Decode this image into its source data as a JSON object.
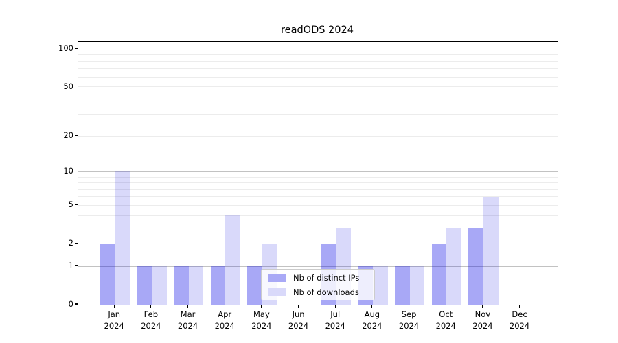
{
  "title": "readODS 2024",
  "chart_data": {
    "type": "bar",
    "title": "readODS 2024",
    "y_scale": "log1p",
    "grid": true,
    "legend_position": "lower center",
    "categories": [
      "Jan",
      "Feb",
      "Mar",
      "Apr",
      "May",
      "Jun",
      "Jul",
      "Aug",
      "Sep",
      "Oct",
      "Nov",
      "Dec"
    ],
    "x_tick_second_line": "2024",
    "series": [
      {
        "name": "Nb of distinct IPs",
        "color": "#a9a9f6",
        "fill": "rgba(0,0,230,0.34)",
        "values": [
          2,
          1,
          1,
          1,
          1,
          0,
          2,
          1,
          1,
          2,
          3,
          0
        ]
      },
      {
        "name": "Nb of downloads",
        "color": "#d9d9fa",
        "fill": "rgba(0,0,222,0.15)",
        "values": [
          10,
          1,
          1,
          4,
          2,
          0,
          3,
          1,
          1,
          3,
          6,
          0
        ]
      }
    ],
    "y_ticks": [
      0,
      1,
      2,
      5,
      10,
      20,
      50,
      100
    ],
    "major_grid_values": [
      1,
      10,
      100
    ],
    "minor_grid_values": [
      2,
      3,
      4,
      5,
      6,
      7,
      8,
      9,
      20,
      30,
      40,
      50,
      60,
      70,
      80,
      90
    ],
    "ylim": [
      0,
      114
    ],
    "xlabel": "",
    "ylabel": ""
  },
  "colors": {
    "major_grid": "#c2c2c2",
    "minor_grid": "#ececec",
    "axis": "#000000",
    "legend_border": "#cccccc"
  }
}
